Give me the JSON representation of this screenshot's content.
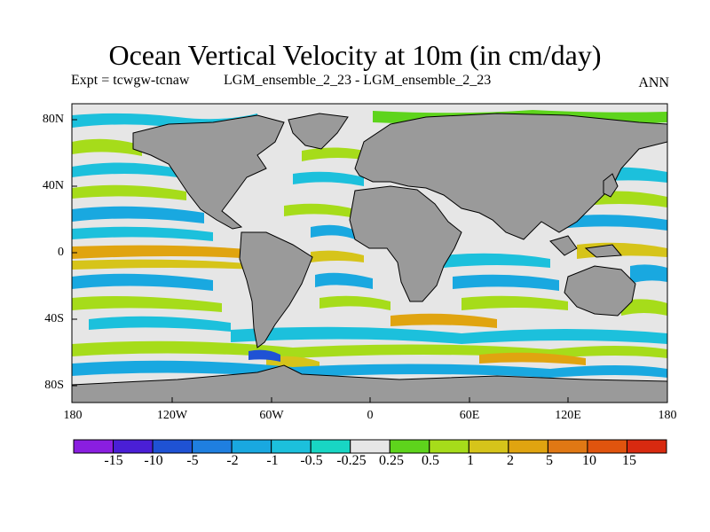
{
  "header": {
    "title": "Ocean Vertical Velocity at 10m (in cm/day)",
    "expt_label": "Expt = tcwgw-tcnaw",
    "comparison_label": "LGM_ensemble_2_23 - LGM_ensemble_2_23",
    "period_label": "ANN"
  },
  "axes": {
    "lat_ticks": [
      "80N",
      "40N",
      "0",
      "40S",
      "80S"
    ],
    "lon_ticks": [
      "180",
      "120W",
      "60W",
      "0",
      "60E",
      "120E",
      "180"
    ]
  },
  "colorbar": {
    "labels": [
      "-15",
      "-10",
      "-5",
      "-2",
      "-1",
      "-0.5",
      "-0.25",
      "0.25",
      "0.5",
      "1",
      "2",
      "5",
      "10",
      "15"
    ],
    "colors": [
      "#8a1ee0",
      "#4a1fd6",
      "#1f52d4",
      "#1f7fe0",
      "#19a8e0",
      "#1cc0dc",
      "#18d6c4",
      "#e6e6e6",
      "#5ed41c",
      "#a6dc1a",
      "#d6c41a",
      "#e0a410",
      "#e07814",
      "#e0540e",
      "#d82a10"
    ]
  },
  "map": {
    "land_color": "#9a9a9a",
    "missing_color": "#e6e6e6"
  }
}
